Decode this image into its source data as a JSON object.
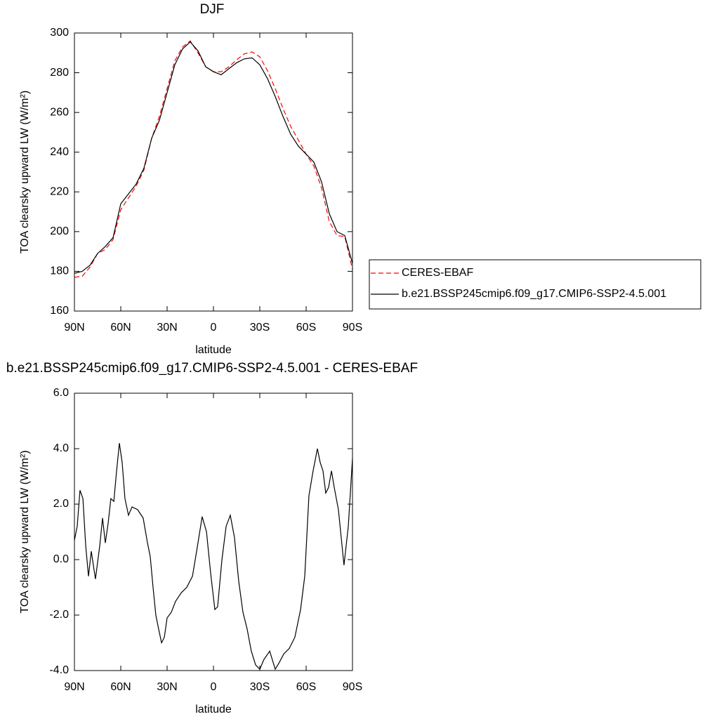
{
  "chart_data": [
    {
      "type": "line",
      "title": "DJF",
      "xlabel": "latitude",
      "ylabel": "TOA clearsky upward LW (W/m²)",
      "x": [
        90,
        85,
        80,
        75,
        70,
        65,
        60,
        55,
        50,
        45,
        40,
        35,
        30,
        25,
        20,
        15,
        10,
        5,
        0,
        -5,
        -10,
        -15,
        -20,
        -25,
        -30,
        -35,
        -40,
        -45,
        -50,
        -55,
        -60,
        -65,
        -70,
        -75,
        -80,
        -85,
        -90
      ],
      "series": [
        {
          "name": "CERES-EBAF",
          "color": "#ff0000",
          "style": "dashed",
          "values": [
            177,
            177.5,
            182,
            189,
            191,
            196,
            211,
            217,
            223,
            231,
            247,
            258,
            272,
            286,
            293,
            296,
            290,
            283,
            280.5,
            280.5,
            283,
            286.5,
            289.5,
            290.5,
            288,
            281,
            272,
            262,
            253,
            246,
            239,
            233,
            222,
            205,
            198,
            197.5,
            181
          ]
        },
        {
          "name": "b.e21.BSSP245cmip6.f09_g17.CMIP6-SSP2-4.5.001",
          "color": "#000000",
          "style": "solid",
          "values": [
            179,
            180,
            183,
            189,
            192.5,
            197,
            214,
            219,
            224,
            232,
            247,
            256,
            270,
            284,
            292,
            295.5,
            291,
            283,
            280.5,
            279,
            282,
            285,
            287,
            287.5,
            284,
            277,
            268,
            258,
            249,
            243,
            239,
            235,
            225,
            209,
            200,
            198,
            184
          ]
        }
      ],
      "xlim": [
        90,
        -90
      ],
      "xticks": [
        {
          "value": 90,
          "label": "90N"
        },
        {
          "value": 60,
          "label": "60N"
        },
        {
          "value": 30,
          "label": "30N"
        },
        0,
        {
          "value": -30,
          "label": "30S"
        },
        {
          "value": -60,
          "label": "60S"
        },
        {
          "value": -90,
          "label": "90S"
        }
      ],
      "ylim": [
        160,
        300
      ],
      "yticks": [
        160,
        180,
        200,
        220,
        240,
        260,
        280,
        300
      ],
      "legend": "right"
    },
    {
      "type": "line",
      "title": "b.e21.BSSP245cmip6.f09_g17.CMIP6-SSP2-4.5.001 - CERES-EBAF",
      "xlabel": "latitude",
      "ylabel": "TOA clearsky upward LW (W/m²)",
      "x": [
        90,
        88.2,
        86.4,
        84.5,
        82.7,
        80.9,
        79.1,
        76.4,
        73.6,
        71.8,
        70,
        68.2,
        66.4,
        64.5,
        62.7,
        60.9,
        59.1,
        57.3,
        55,
        52.7,
        49.1,
        45.5,
        42.7,
        40.9,
        39.1,
        37.3,
        35.5,
        33.6,
        31.8,
        30,
        27.3,
        24.5,
        20.9,
        17.3,
        13.6,
        10.9,
        7.3,
        4.5,
        1.8,
        -0.9,
        -2.7,
        -5.5,
        -8.2,
        -10.9,
        -13.6,
        -16.4,
        -19.1,
        -21.8,
        -24.5,
        -27.3,
        -30,
        -32.7,
        -36.4,
        -40,
        -42.7,
        -45.5,
        -49.1,
        -52.7,
        -56.4,
        -59.1,
        -61.8,
        -64.5,
        -67.3,
        -69.1,
        -70.9,
        -72.7,
        -74.5,
        -76.4,
        -78.2,
        -80.9,
        -84.5,
        -87.3,
        -90
      ],
      "values": [
        0.7,
        1.2,
        2.5,
        2.2,
        0.5,
        -0.6,
        0.3,
        -0.7,
        0.5,
        1.5,
        0.6,
        1.3,
        2.2,
        2.1,
        3.2,
        4.2,
        3.5,
        2.2,
        1.6,
        1.9,
        1.8,
        1.5,
        0.6,
        0.1,
        -1.0,
        -2.0,
        -2.5,
        -3.0,
        -2.8,
        -2.1,
        -1.9,
        -1.5,
        -1.2,
        -1.0,
        -0.6,
        0.3,
        1.55,
        1.0,
        -0.5,
        -1.8,
        -1.7,
        0.0,
        1.2,
        1.6,
        0.8,
        -0.8,
        -1.9,
        -2.5,
        -3.3,
        -3.8,
        -3.95,
        -3.6,
        -3.3,
        -3.95,
        -3.7,
        -3.4,
        -3.2,
        -2.8,
        -1.8,
        -0.6,
        2.3,
        3.2,
        4.0,
        3.5,
        3.2,
        2.4,
        2.6,
        3.2,
        2.6,
        1.8,
        -0.2,
        1.2,
        3.65
      ],
      "color": "#000000",
      "xlim": [
        90,
        -90
      ],
      "xticks": [
        {
          "value": 90,
          "label": "90N"
        },
        {
          "value": 60,
          "label": "60N"
        },
        {
          "value": 30,
          "label": "30N"
        },
        0,
        {
          "value": -30,
          "label": "30S"
        },
        {
          "value": -60,
          "label": "60S"
        },
        {
          "value": -90,
          "label": "90S"
        }
      ],
      "ylim": [
        -4,
        6
      ],
      "yticks": [
        {
          "value": -4,
          "label": "-4.0"
        },
        {
          "value": -2,
          "label": "-2.0"
        },
        {
          "value": 0,
          "label": "0.0"
        },
        {
          "value": 2,
          "label": "2.0"
        },
        {
          "value": 4,
          "label": "4.0"
        },
        {
          "value": 6,
          "label": "6.0"
        }
      ]
    }
  ]
}
